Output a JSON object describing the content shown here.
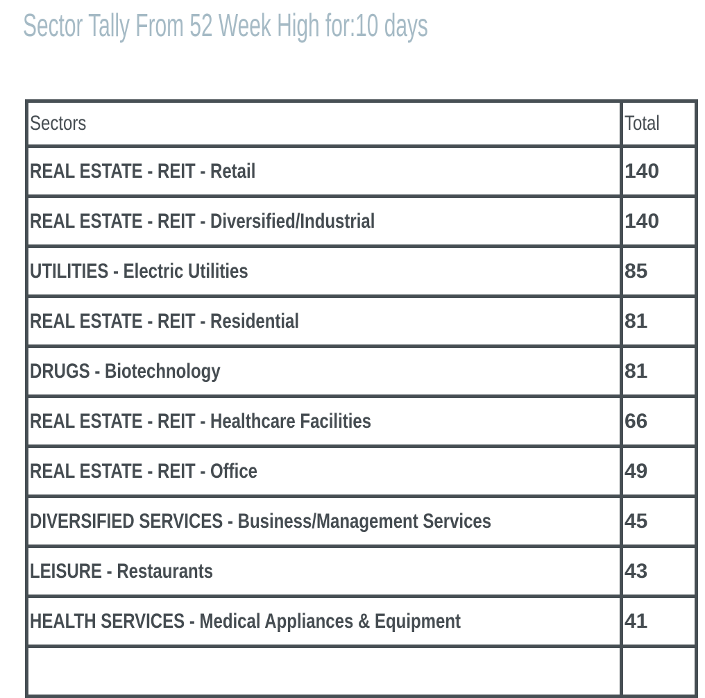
{
  "chart_data": {
    "type": "table",
    "title": "Sector Tally From 52 Week High for:10 days",
    "columns": [
      "Sectors",
      "Total"
    ],
    "rows": [
      [
        "REAL ESTATE - REIT - Retail",
        140
      ],
      [
        "REAL ESTATE - REIT - Diversified/Industrial",
        140
      ],
      [
        "UTILITIES - Electric Utilities",
        85
      ],
      [
        "REAL ESTATE - REIT - Residential",
        81
      ],
      [
        "DRUGS - Biotechnology",
        81
      ],
      [
        "REAL ESTATE - REIT - Healthcare Facilities",
        66
      ],
      [
        "REAL ESTATE - REIT - Office",
        49
      ],
      [
        "DIVERSIFIED SERVICES - Business/Management Services",
        45
      ],
      [
        "LEISURE - Restaurants",
        43
      ],
      [
        "HEALTH SERVICES - Medical Appliances & Equipment",
        41
      ]
    ],
    "layout": {
      "legend": "none",
      "grid": "full-borders",
      "partial_row_clipped_at_bottom": true
    }
  },
  "colors": {
    "title_text": "#a5bac5",
    "table_border": "#474f54",
    "cell_text": "#454c51",
    "background": "#ffffff"
  }
}
